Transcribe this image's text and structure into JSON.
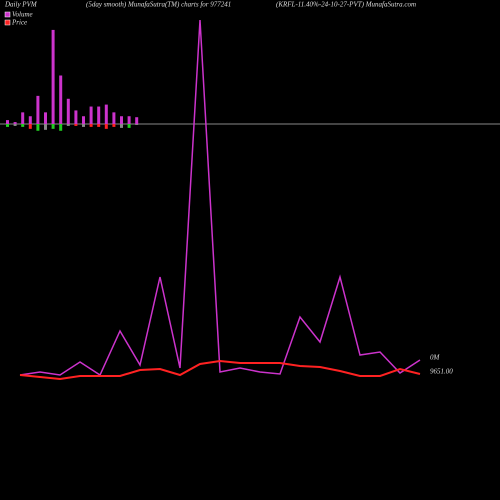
{
  "chart_data": {
    "type": "line",
    "title": "Daily PVM",
    "subtitle": "(5day smooth) MunafaSutra(TM) charts for 977241",
    "subtitle2": "(KRFL-11.40%-24-10-27-PVT) MunafaSutra.com",
    "right_labels": [
      "0M",
      "9651.00"
    ],
    "x": [
      1,
      2,
      3,
      4,
      5,
      6,
      7,
      8,
      9,
      10,
      11,
      12,
      13,
      14,
      15,
      16,
      17,
      18,
      19,
      20,
      21
    ],
    "xlim": [
      1,
      21
    ],
    "ylim": [
      0,
      365
    ],
    "series": [
      {
        "name": "Volume",
        "color": "#cc33cc",
        "values": [
          5,
          8,
          5,
          18,
          5,
          49,
          15,
          103,
          12,
          360,
          8,
          12,
          8,
          6,
          63,
          38,
          103,
          25,
          28,
          7,
          20
        ]
      },
      {
        "name": "Price",
        "color": "#ff2222",
        "values": [
          5,
          3,
          1,
          4,
          4,
          4,
          10,
          11,
          5,
          16,
          19,
          17,
          17,
          17,
          14,
          13,
          9,
          4,
          4,
          11,
          6
        ]
      }
    ],
    "bars": {
      "ylim": [
        0,
        100
      ],
      "up_color": "#cc33cc",
      "up": [
        4,
        2,
        12,
        8,
        29,
        12,
        97,
        50,
        26,
        14,
        8,
        18,
        18,
        20,
        12,
        8,
        8,
        7
      ],
      "down": [
        3,
        2,
        3,
        5,
        7,
        6,
        5,
        7,
        2,
        2,
        3,
        3,
        3,
        5,
        3,
        4,
        4,
        1
      ],
      "down_colors": [
        "#22cc22",
        "#888888",
        "#22cc22",
        "#ff2222",
        "#22cc22",
        "#888888",
        "#22cc22",
        "#22cc22",
        "#888888",
        "#ff2222",
        "#888888",
        "#ff2222",
        "#ff2222",
        "#ff2222",
        "#ff2222",
        "#888888",
        "#22cc22",
        "#888888"
      ]
    }
  }
}
